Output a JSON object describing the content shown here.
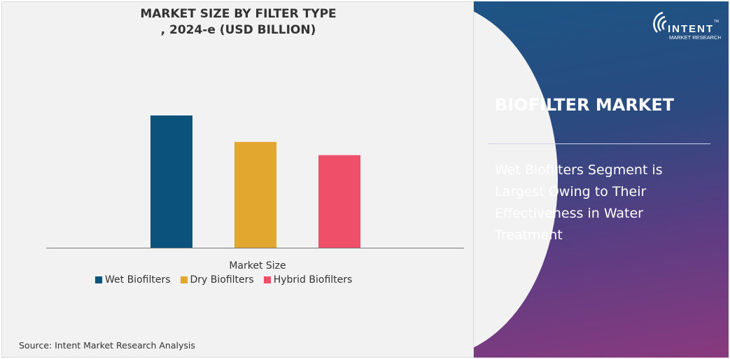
{
  "chart_data": {
    "type": "bar",
    "title": "MARKET SIZE BY FILTER TYPE\n, 2024-e (USD BILLION)",
    "xlabel": "Market Size",
    "ylabel": "",
    "categories": [
      "Market Size"
    ],
    "series": [
      {
        "name": "Wet Biofilters",
        "values": [
          100
        ],
        "color": "#0b527c"
      },
      {
        "name": "Dry Biofilters",
        "values": [
          80
        ],
        "color": "#e2a72e"
      },
      {
        "name": "Hybrid Biofilters",
        "values": [
          70
        ],
        "color": "#ef4f69"
      }
    ],
    "ylim": [
      0,
      100
    ],
    "value_note_visible": false,
    "grid": false,
    "legend_position": "bottom"
  },
  "title_line1": "MARKET SIZE BY FILTER TYPE",
  "title_line2": ", 2024-e (USD BILLION)",
  "source": "Source: Intent Market Research Analysis",
  "panel": {
    "heading": "BIOFILTER MARKET",
    "description": "Wet Biofilters Segment is Largest Owing to Their Effectiveness in Water Treatment"
  },
  "logo": {
    "name": "INTENT",
    "tagline": "MARKET RESEARCH",
    "tm": "TM"
  }
}
